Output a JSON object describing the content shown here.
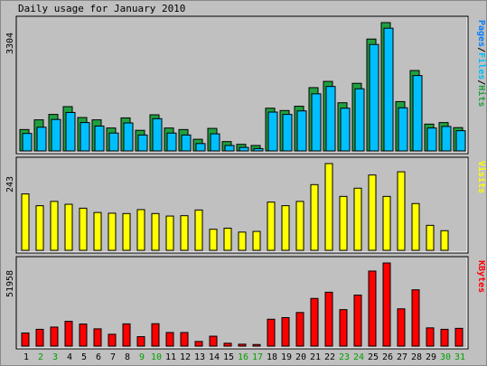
{
  "chart_data": {
    "title": "Daily usage for January 2010",
    "type": "bar",
    "days": [
      "1",
      "2",
      "3",
      "4",
      "5",
      "6",
      "7",
      "8",
      "9",
      "10",
      "11",
      "12",
      "13",
      "14",
      "15",
      "16",
      "17",
      "18",
      "19",
      "20",
      "21",
      "22",
      "23",
      "24",
      "25",
      "26",
      "27",
      "28",
      "29",
      "30",
      "31"
    ],
    "weekend_days": [
      2,
      3,
      9,
      10,
      16,
      17,
      23,
      24,
      30,
      31
    ],
    "panels": [
      {
        "id": "hits",
        "max_label": "3304",
        "ymax": 3304,
        "legend": [
          {
            "text": "Pages",
            "color": "#0080ff"
          },
          {
            "text": "Files",
            "color": "#00bfff"
          },
          {
            "text": "Hits",
            "color": "#20a040"
          }
        ],
        "series": [
          {
            "name": "Hits",
            "color": "#20a040",
            "values": [
              550,
              800,
              940,
              1140,
              860,
              800,
              590,
              850,
              530,
              930,
              590,
              550,
              300,
              580,
              240,
              170,
              140,
              1100,
              1040,
              1150,
              1630,
              1790,
              1240,
              1740,
              2880,
              3304,
              1270,
              2070,
              690,
              730,
              600
            ]
          },
          {
            "name": "Files",
            "color": "#00bfff",
            "values": [
              450,
              610,
              810,
              990,
              730,
              640,
              460,
              720,
              410,
              830,
              460,
              410,
              190,
              440,
              140,
              90,
              60,
              1000,
              940,
              1030,
              1470,
              1660,
              1100,
              1600,
              2740,
              3160,
              1110,
              1940,
              590,
              630,
              520
            ]
          }
        ]
      },
      {
        "id": "visits",
        "max_label": "243",
        "ymax": 243,
        "legend": [
          {
            "text": "Visits",
            "color": "#ffff00"
          }
        ],
        "series": [
          {
            "name": "Visits",
            "color": "#ffff00",
            "values": [
              158,
              125,
              137,
              129,
              118,
              106,
              104,
              103,
              114,
              103,
              96,
              97,
              113,
              59,
              62,
              51,
              53,
              135,
              125,
              137,
              184,
              243,
              151,
              174,
              211,
              151,
              220,
              131,
              70,
              55,
              0
            ]
          }
        ]
      },
      {
        "id": "kbytes",
        "max_label": "51958",
        "ymax": 51958,
        "legend": [
          {
            "text": "KBytes",
            "color": "#ff0000"
          }
        ],
        "series": [
          {
            "name": "KBytes",
            "color": "#ff0000",
            "values": [
              8200,
              10500,
              11900,
              15500,
              13800,
              10800,
              7400,
              13900,
              5900,
              14000,
              8500,
              8500,
              2900,
              6200,
              1800,
              1200,
              1000,
              16800,
              17800,
              21000,
              29800,
              33700,
              22800,
              31900,
              46900,
              51958,
              23300,
              35200,
              11400,
              10500,
              11100
            ]
          }
        ]
      }
    ]
  }
}
